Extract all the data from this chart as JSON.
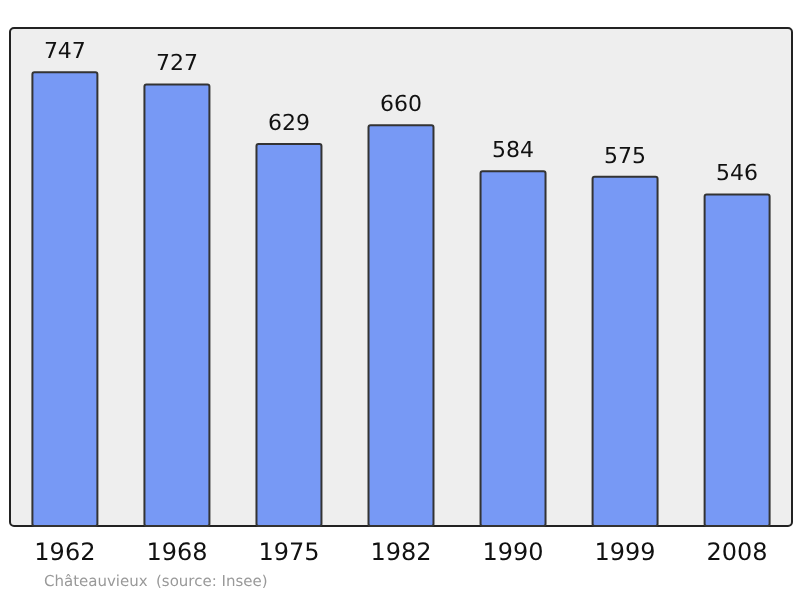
{
  "chart_data": {
    "type": "bar",
    "categories": [
      "1962",
      "1968",
      "1975",
      "1982",
      "1990",
      "1999",
      "2008"
    ],
    "values": [
      747,
      727,
      629,
      660,
      584,
      575,
      546
    ],
    "color": "#7799f5",
    "ylim": [
      0,
      820
    ],
    "tick_labels": "x",
    "data_labels": true,
    "grid": false,
    "annotations": [
      "Châteauvieux",
      "(source: Insee)"
    ]
  }
}
